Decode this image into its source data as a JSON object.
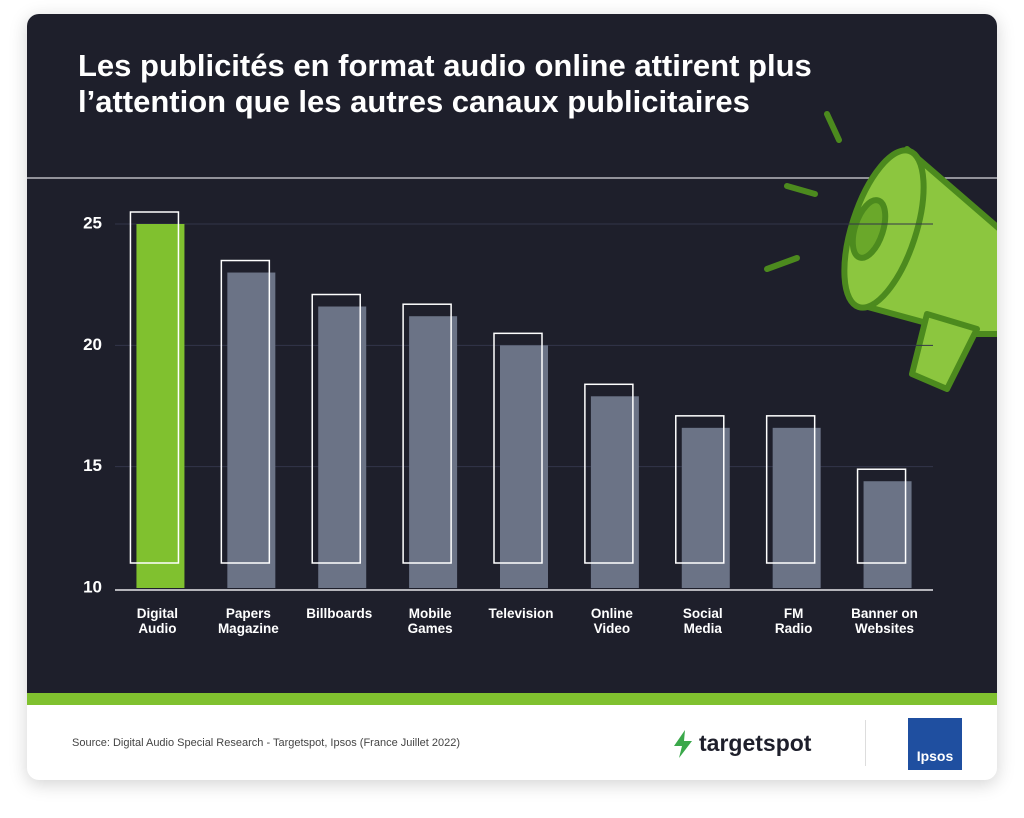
{
  "chart_data": {
    "type": "bar",
    "title": "Les publicités en format audio online attirent plus l’attention que les autres canaux publicitaires",
    "categories": [
      "Digital\nAudio",
      "Papers\nMagazine",
      "Billboards",
      "Mobile\nGames",
      "Television",
      "Online\nVideo",
      "Social\nMedia",
      "FM\nRadio",
      "Banner on\nWebsites"
    ],
    "values": [
      25.0,
      23.0,
      21.6,
      21.2,
      20.0,
      17.9,
      16.6,
      16.6,
      14.4
    ],
    "colors": [
      "#80c12f",
      "#6b7386",
      "#6b7386",
      "#6b7386",
      "#6b7386",
      "#6b7386",
      "#6b7386",
      "#6b7386",
      "#6b7386"
    ],
    "ylim": [
      10,
      25
    ],
    "yticks": [
      10,
      15,
      20,
      25
    ],
    "grid": true
  },
  "footer": {
    "source": "Source: Digital Audio Special Research - Targetspot, Ipsos (France Juillet 2022)",
    "brand": "targetspot",
    "partner": "Ipsos"
  }
}
